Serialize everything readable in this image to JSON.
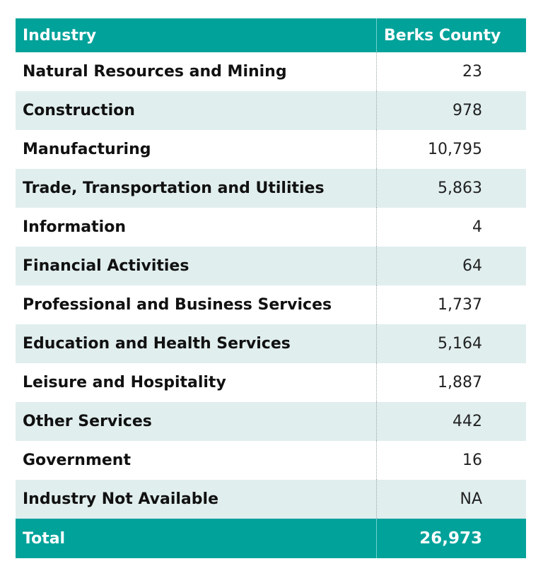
{
  "table": {
    "header": {
      "industry": "Industry",
      "county": "Berks County"
    },
    "rows": [
      {
        "industry": "Natural Resources and Mining",
        "value": "23"
      },
      {
        "industry": "Construction",
        "value": "978"
      },
      {
        "industry": "Manufacturing",
        "value": "10,795"
      },
      {
        "industry": "Trade, Transportation and Utilities",
        "value": "5,863"
      },
      {
        "industry": "Information",
        "value": "4"
      },
      {
        "industry": "Financial Activities",
        "value": "64"
      },
      {
        "industry": "Professional and Business Services",
        "value": "1,737"
      },
      {
        "industry": "Education and Health Services",
        "value": "5,164"
      },
      {
        "industry": "Leisure and Hospitality",
        "value": "1,887"
      },
      {
        "industry": "Other Services",
        "value": "442"
      },
      {
        "industry": "Government",
        "value": "16"
      },
      {
        "industry": "Industry Not Available",
        "value": "NA"
      }
    ],
    "total": {
      "label": "Total",
      "value": "26,973"
    }
  },
  "colors": {
    "header_bg": "#00a29a",
    "stripe_bg": "#e1eeee",
    "text": "#111111"
  }
}
